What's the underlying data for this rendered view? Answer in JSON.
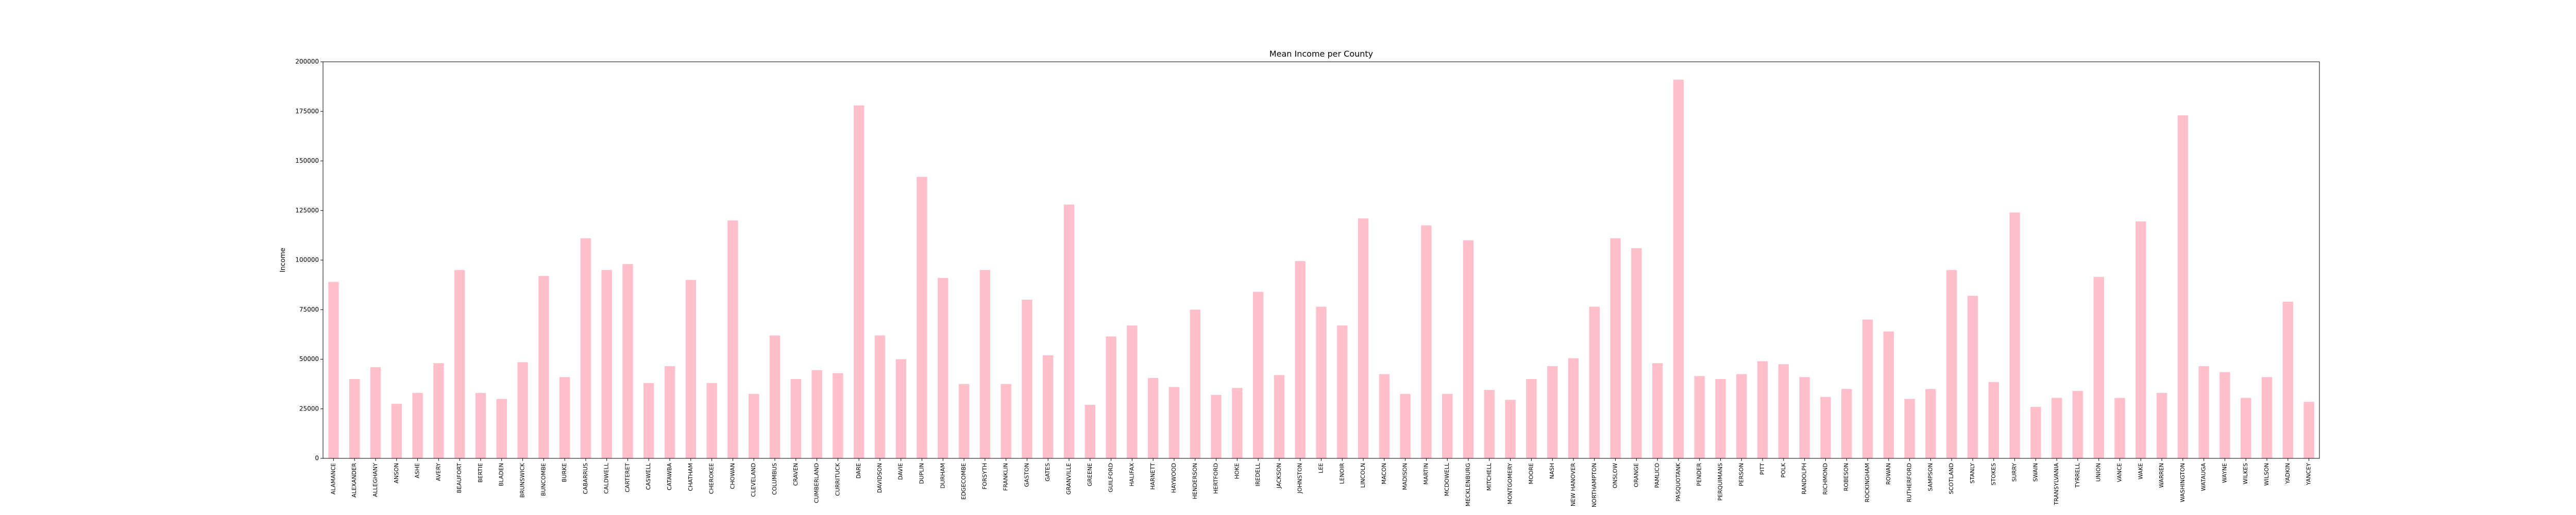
{
  "chart_data": {
    "type": "bar",
    "title": "Mean Income per County",
    "xlabel": "",
    "ylabel": "Income",
    "ylim": [
      0,
      200000
    ],
    "yticks": [
      0,
      25000,
      50000,
      75000,
      100000,
      125000,
      150000,
      175000,
      200000
    ],
    "grid": false,
    "bar_color": "#ffc0cb",
    "categories": [
      "ALAMANCE",
      "ALEXANDER",
      "ALLEGHANY",
      "ANSON",
      "ASHE",
      "AVERY",
      "BEAUFORT",
      "BERTIE",
      "BLADEN",
      "BRUNSWICK",
      "BUNCOMBE",
      "BURKE",
      "CABARRUS",
      "CALDWELL",
      "CARTERET",
      "CASWELL",
      "CATAWBA",
      "CHATHAM",
      "CHEROKEE",
      "CHOWAN",
      "CLEVELAND",
      "COLUMBUS",
      "CRAVEN",
      "CUMBERLAND",
      "CURRITUCK",
      "DARE",
      "DAVIDSON",
      "DAVIE",
      "DUPLIN",
      "DURHAM",
      "EDGECOMBE",
      "FORSYTH",
      "FRANKLIN",
      "GASTON",
      "GATES",
      "GRANVILLE",
      "GREENE",
      "GUILFORD",
      "HALIFAX",
      "HARNETT",
      "HAYWOOD",
      "HENDERSON",
      "HERTFORD",
      "HOKE",
      "IREDELL",
      "JACKSON",
      "JOHNSTON",
      "LEE",
      "LENOIR",
      "LINCOLN",
      "MACON",
      "MADISON",
      "MARTIN",
      "MCDOWELL",
      "MECKLENBURG",
      "MITCHELL",
      "MONTGOMERY",
      "MOORE",
      "NASH",
      "NEW HANOVER",
      "NORTHAMPTON",
      "ONSLOW",
      "ORANGE",
      "PAMLICO",
      "PASQUOTANK",
      "PENDER",
      "PERQUIMANS",
      "PERSON",
      "PITT",
      "POLK",
      "RANDOLPH",
      "RICHMOND",
      "ROBESON",
      "ROCKINGHAM",
      "ROWAN",
      "RUTHERFORD",
      "SAMPSON",
      "SCOTLAND",
      "STANLY",
      "STOKES",
      "SURRY",
      "SWAIN",
      "TRANSYLVANIA",
      "TYRRELL",
      "UNION",
      "VANCE",
      "WAKE",
      "WARREN",
      "WASHINGTON",
      "WATAUGA",
      "WAYNE",
      "WILKES",
      "WILSON",
      "YADKIN",
      "YANCEY"
    ],
    "values": [
      89000,
      40000,
      46000,
      27500,
      33000,
      48000,
      95000,
      33000,
      30000,
      48500,
      92000,
      41000,
      111000,
      95000,
      98000,
      38000,
      46500,
      90000,
      38000,
      120000,
      32500,
      62000,
      40000,
      44500,
      43000,
      178000,
      62000,
      50000,
      142000,
      91000,
      37500,
      95000,
      37500,
      80000,
      52000,
      128000,
      27000,
      61500,
      67000,
      40500,
      36000,
      75000,
      32000,
      35500,
      84000,
      42000,
      99500,
      76500,
      67000,
      121000,
      42500,
      32500,
      117500,
      32500,
      110000,
      34500,
      29500,
      40000,
      46500,
      50500,
      76500,
      111000,
      106000,
      48000,
      191000,
      41500,
      40000,
      42500,
      49000,
      47500,
      41000,
      31000,
      35000,
      70000,
      64000,
      30000,
      35000,
      95000,
      82000,
      38500,
      124000,
      26000,
      30500,
      34000,
      91500,
      30500,
      119500,
      33000,
      173000,
      46500,
      43500,
      30500,
      41000,
      79000,
      28500
    ]
  }
}
